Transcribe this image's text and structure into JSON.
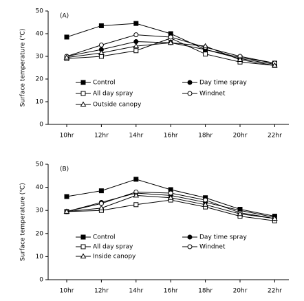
{
  "chart_data": [
    {
      "type": "line",
      "label": "(A)",
      "ylabel": "Surface temperature (℃)",
      "categories": [
        "10hr",
        "12hr",
        "14hr",
        "16hr",
        "18hr",
        "20hr",
        "22hr"
      ],
      "ylim": [
        0,
        50
      ],
      "yticks": [
        0,
        10,
        20,
        30,
        40,
        50
      ],
      "series": [
        {
          "name": "Control",
          "marker": "square-filled",
          "color": "#000000",
          "values": [
            38.5,
            43.5,
            44.5,
            40,
            33,
            29.5,
            27
          ]
        },
        {
          "name": "Day time spray",
          "marker": "circle-filled",
          "color": "#000000",
          "values": [
            30,
            33,
            36.5,
            36,
            33,
            29,
            26.5
          ]
        },
        {
          "name": "All day spray",
          "marker": "square-open",
          "color": "#000000",
          "values": [
            29,
            30,
            32.5,
            38,
            31,
            27.5,
            26
          ]
        },
        {
          "name": "Windnet",
          "marker": "circle-open",
          "color": "#000000",
          "values": [
            30,
            35,
            39.5,
            38.5,
            34,
            30,
            27
          ]
        },
        {
          "name": "Outside canopy",
          "marker": "triangle-open",
          "color": "#000000",
          "values": [
            29.5,
            31.5,
            34.5,
            36,
            34.5,
            28.5,
            26
          ]
        }
      ]
    },
    {
      "type": "line",
      "label": "(B)",
      "ylabel": "Surface temperature (℃)",
      "categories": [
        "10hr",
        "12hr",
        "14hr",
        "16hr",
        "18hr",
        "20hr",
        "22hr"
      ],
      "ylim": [
        0,
        50
      ],
      "yticks": [
        0,
        10,
        20,
        30,
        40,
        50
      ],
      "series": [
        {
          "name": "Control",
          "marker": "square-filled",
          "color": "#000000",
          "values": [
            36,
            38.5,
            43.5,
            39,
            35.5,
            30.5,
            27.5
          ]
        },
        {
          "name": "Day time spray",
          "marker": "circle-filled",
          "color": "#000000",
          "values": [
            29.5,
            33.5,
            37.5,
            36.5,
            33.5,
            30,
            27
          ]
        },
        {
          "name": "All day spray",
          "marker": "square-open",
          "color": "#000000",
          "values": [
            29.5,
            30,
            32.5,
            34.5,
            31.5,
            27.5,
            25.5
          ]
        },
        {
          "name": "Windnet",
          "marker": "circle-open",
          "color": "#000000",
          "values": [
            29.5,
            33,
            38,
            37.5,
            34.5,
            29,
            26.5
          ]
        },
        {
          "name": "Inside canopy",
          "marker": "triangle-open",
          "color": "#000000",
          "values": [
            29.5,
            31,
            36.5,
            35.5,
            32.5,
            28.5,
            26.5
          ]
        }
      ]
    }
  ]
}
